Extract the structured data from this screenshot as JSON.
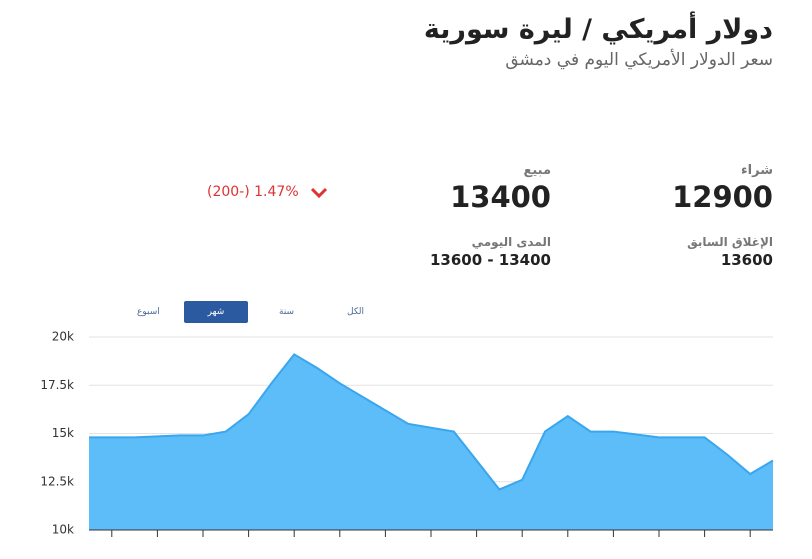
{
  "header": {
    "title": "دولار أمريكي / ليرة سورية",
    "subtitle": "سعر الدولار الأمريكي اليوم في دمشق"
  },
  "quote": {
    "buy_label": "شراء",
    "buy": 12900,
    "sell_label": "مبيع",
    "sell": 13400,
    "change": "(200-) 1.47%",
    "previous_close_label": "الإغلاق السابق",
    "previous_close": 13600,
    "daily_range_label": "المدى اليومي",
    "daily_range": "13600 - 13400"
  },
  "tabs": [
    "الكل",
    "سنة",
    "شهر",
    "اسبوع"
  ],
  "chart_data": {
    "type": "area",
    "color": "#5cbdf8",
    "line_color": "#3aa6ee",
    "grid": true,
    "categories": [
      null,
      null,
      null,
      null,
      null,
      null,
      null,
      null,
      null,
      null,
      null,
      null,
      null,
      null,
      null,
      null,
      null,
      null,
      null,
      null,
      null,
      null,
      null,
      null,
      null,
      null,
      null,
      null,
      null,
      null,
      null
    ],
    "values": [
      14.8,
      14.8,
      14.8,
      14.85,
      14.9,
      14.9,
      15.1,
      16.0,
      17.6,
      19.1,
      18.4,
      17.6,
      16.9,
      16.2,
      15.5,
      15.3,
      15.1,
      13.6,
      12.1,
      12.6,
      15.1,
      15.9,
      15.1,
      15.1,
      14.95,
      14.8,
      14.8,
      14.8,
      13.9,
      12.9,
      13.6
    ],
    "ylim": [
      10,
      20
    ],
    "yticks": [
      {
        "value": 10,
        "label": "10k"
      },
      {
        "value": 12.5,
        "label": "12.5k"
      },
      {
        "value": 15,
        "label": "15k"
      },
      {
        "value": 17.5,
        "label": "17.5k"
      },
      {
        "value": 20,
        "label": "20k"
      }
    ]
  }
}
